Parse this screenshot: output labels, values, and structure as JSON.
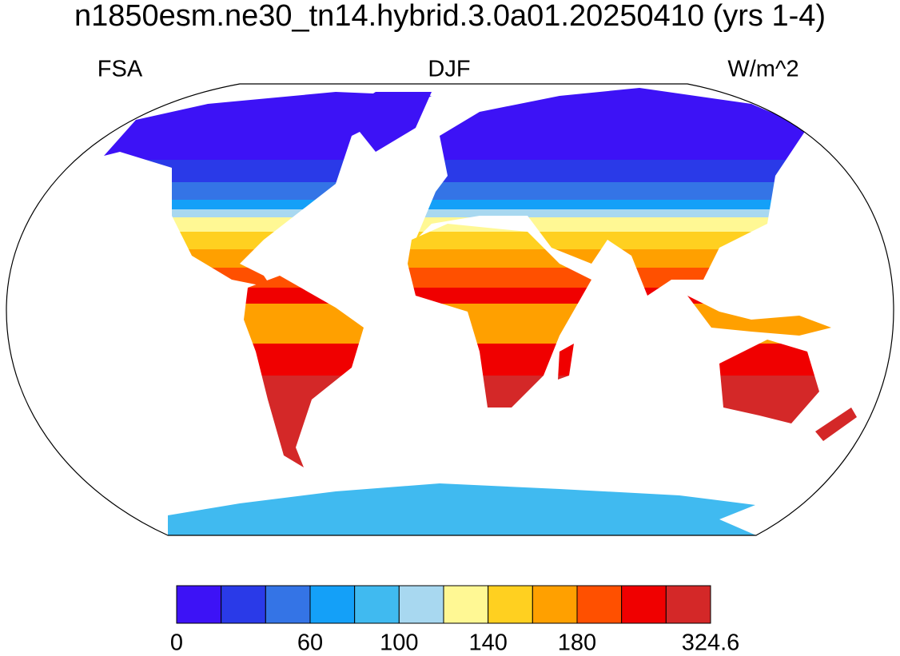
{
  "title": "n1850esm.ne30_tn14.hybrid.3.0a01.20250410 (yrs 1-4)",
  "left_string": "FSA",
  "center_string": "DJF",
  "right_string": "W/m^2",
  "colorbar": {
    "colors": [
      "#3d12f6",
      "#2a3ae8",
      "#3474e6",
      "#14a0f8",
      "#40baf0",
      "#a8d8f0",
      "#fff894",
      "#ffd020",
      "#ffa000",
      "#ff5000",
      "#f00000",
      "#d42828"
    ],
    "tick_labels": [
      0,
      60,
      100,
      140,
      180,
      324.6
    ]
  }
}
